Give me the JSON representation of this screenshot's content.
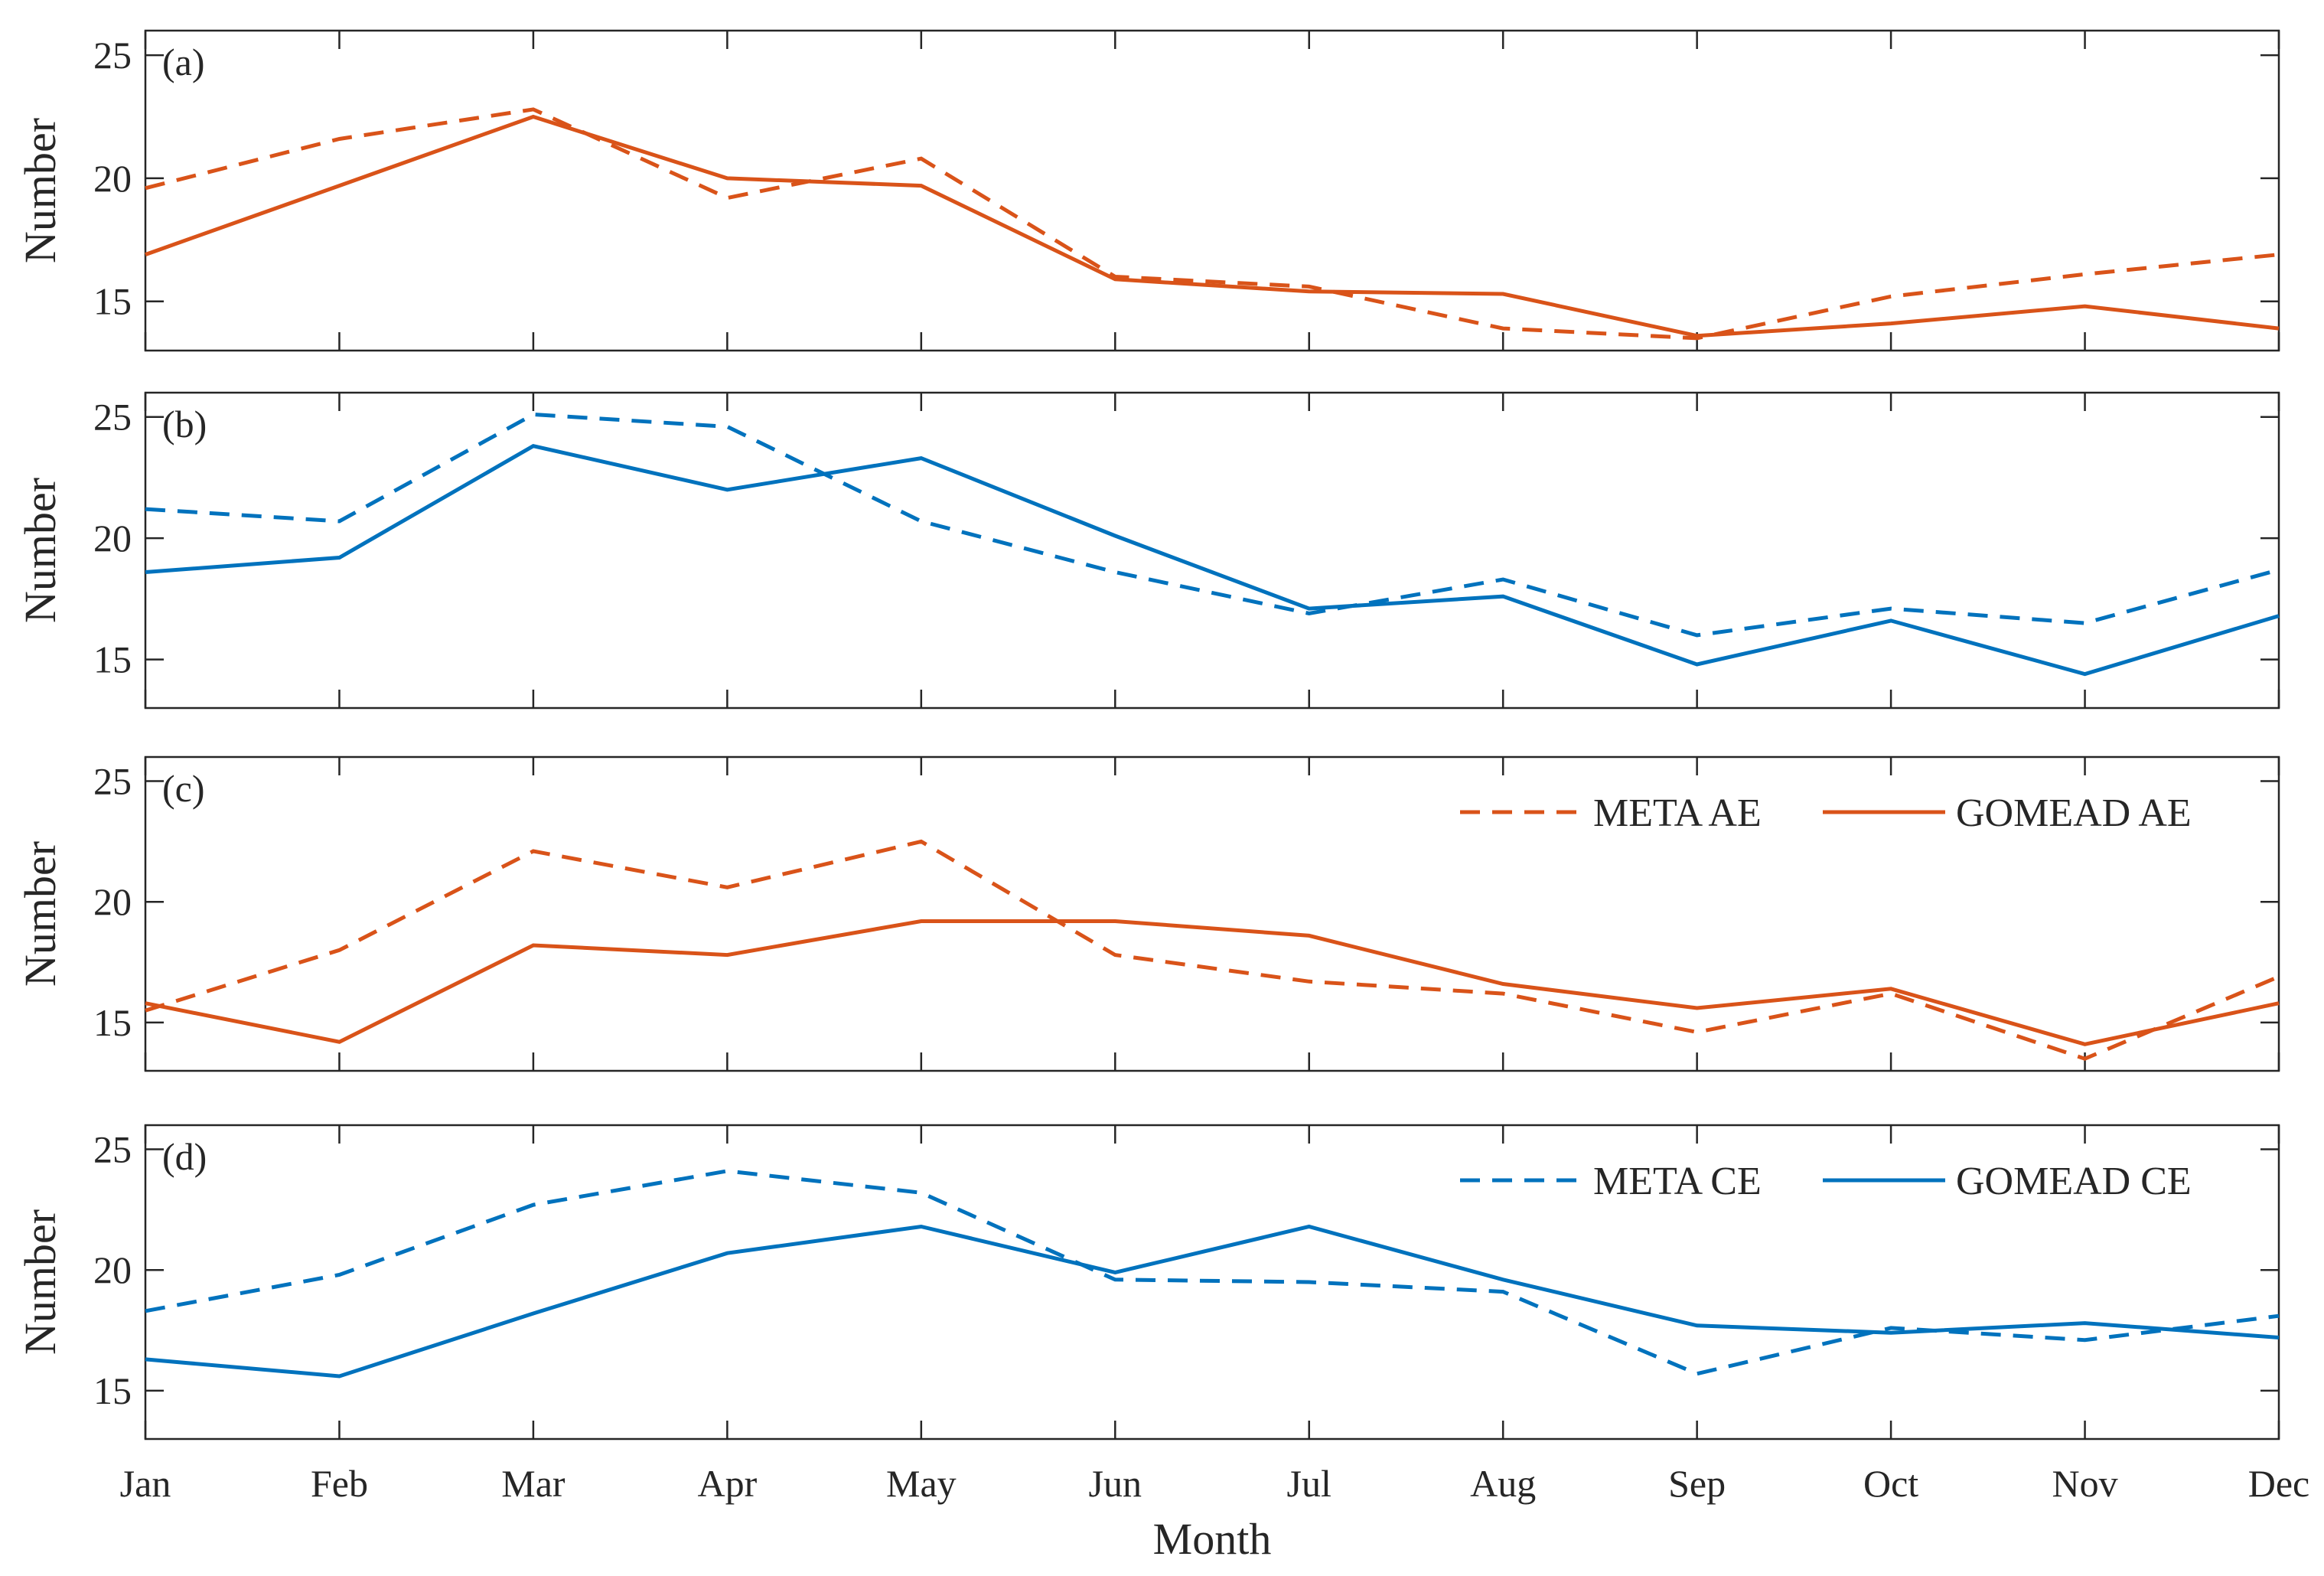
{
  "chart_data": {
    "type": "line",
    "xlabel": "Month",
    "categories": [
      "Jan",
      "Feb",
      "Mar",
      "Apr",
      "May",
      "Jun",
      "Jul",
      "Aug",
      "Sep",
      "Oct",
      "Nov",
      "Dec"
    ],
    "colors": {
      "ae": "#D95319",
      "ce": "#0072BD",
      "axis": "#262626"
    },
    "panels": [
      {
        "label": "(a)",
        "ylabel": "Number",
        "ylim": [
          13,
          26
        ],
        "yticks": [
          15,
          20,
          25
        ],
        "show_xticklabels": false,
        "series": [
          {
            "name": "META AE",
            "style": "dashed",
            "color": "#D95319",
            "values": [
              19.6,
              21.6,
              22.8,
              19.2,
              20.8,
              16.0,
              15.6,
              13.9,
              13.5,
              15.2,
              16.1,
              16.9
            ]
          },
          {
            "name": "GOMEAD AE",
            "style": "solid",
            "color": "#D95319",
            "values": [
              16.9,
              19.7,
              22.5,
              20.0,
              19.7,
              15.9,
              15.4,
              15.3,
              13.6,
              14.1,
              14.8,
              13.9
            ]
          }
        ]
      },
      {
        "label": "(b)",
        "ylabel": "Number",
        "ylim": [
          13,
          26
        ],
        "yticks": [
          15,
          20,
          25
        ],
        "show_xticklabels": false,
        "series": [
          {
            "name": "META CE",
            "style": "dashed",
            "color": "#0072BD",
            "values": [
              21.2,
              20.7,
              25.1,
              24.6,
              20.7,
              18.6,
              16.9,
              18.3,
              16.0,
              17.1,
              16.5,
              18.7
            ]
          },
          {
            "name": "GOMEAD CE",
            "style": "solid",
            "color": "#0072BD",
            "values": [
              18.6,
              19.2,
              23.8,
              22.0,
              23.3,
              20.1,
              17.1,
              17.6,
              14.8,
              16.6,
              14.4,
              16.8
            ]
          }
        ]
      },
      {
        "label": "(c)",
        "ylabel": "Number",
        "ylim": [
          13,
          26
        ],
        "yticks": [
          15,
          20,
          25
        ],
        "show_xticklabels": false,
        "legend": {
          "placement": "top-right",
          "entries": [
            "META AE",
            "GOMEAD AE"
          ]
        },
        "series": [
          {
            "name": "META AE",
            "style": "dashed",
            "color": "#D95319",
            "values": [
              15.5,
              18.0,
              22.1,
              20.6,
              22.5,
              17.8,
              16.7,
              16.2,
              14.6,
              16.2,
              13.5,
              16.9
            ]
          },
          {
            "name": "GOMEAD AE",
            "style": "solid",
            "color": "#D95319",
            "values": [
              15.8,
              14.2,
              18.2,
              17.8,
              19.2,
              19.2,
              18.6,
              16.6,
              15.6,
              16.4,
              14.1,
              15.8
            ]
          }
        ]
      },
      {
        "label": "(d)",
        "ylabel": "Number",
        "ylim": [
          13,
          26
        ],
        "yticks": [
          15,
          20,
          25
        ],
        "show_xticklabels": true,
        "legend": {
          "placement": "top-right",
          "entries": [
            "META CE",
            "GOMEAD CE"
          ]
        },
        "series": [
          {
            "name": "META CE",
            "style": "dashed",
            "color": "#0072BD",
            "values": [
              18.3,
              19.8,
              22.7,
              24.1,
              23.2,
              19.6,
              19.5,
              19.1,
              15.7,
              17.6,
              17.1,
              18.1
            ]
          },
          {
            "name": "GOMEAD CE",
            "style": "solid",
            "color": "#0072BD",
            "values": [
              16.3,
              15.6,
              18.2,
              20.7,
              21.8,
              19.9,
              21.8,
              19.6,
              17.7,
              17.4,
              17.8,
              17.2
            ]
          }
        ]
      }
    ]
  }
}
